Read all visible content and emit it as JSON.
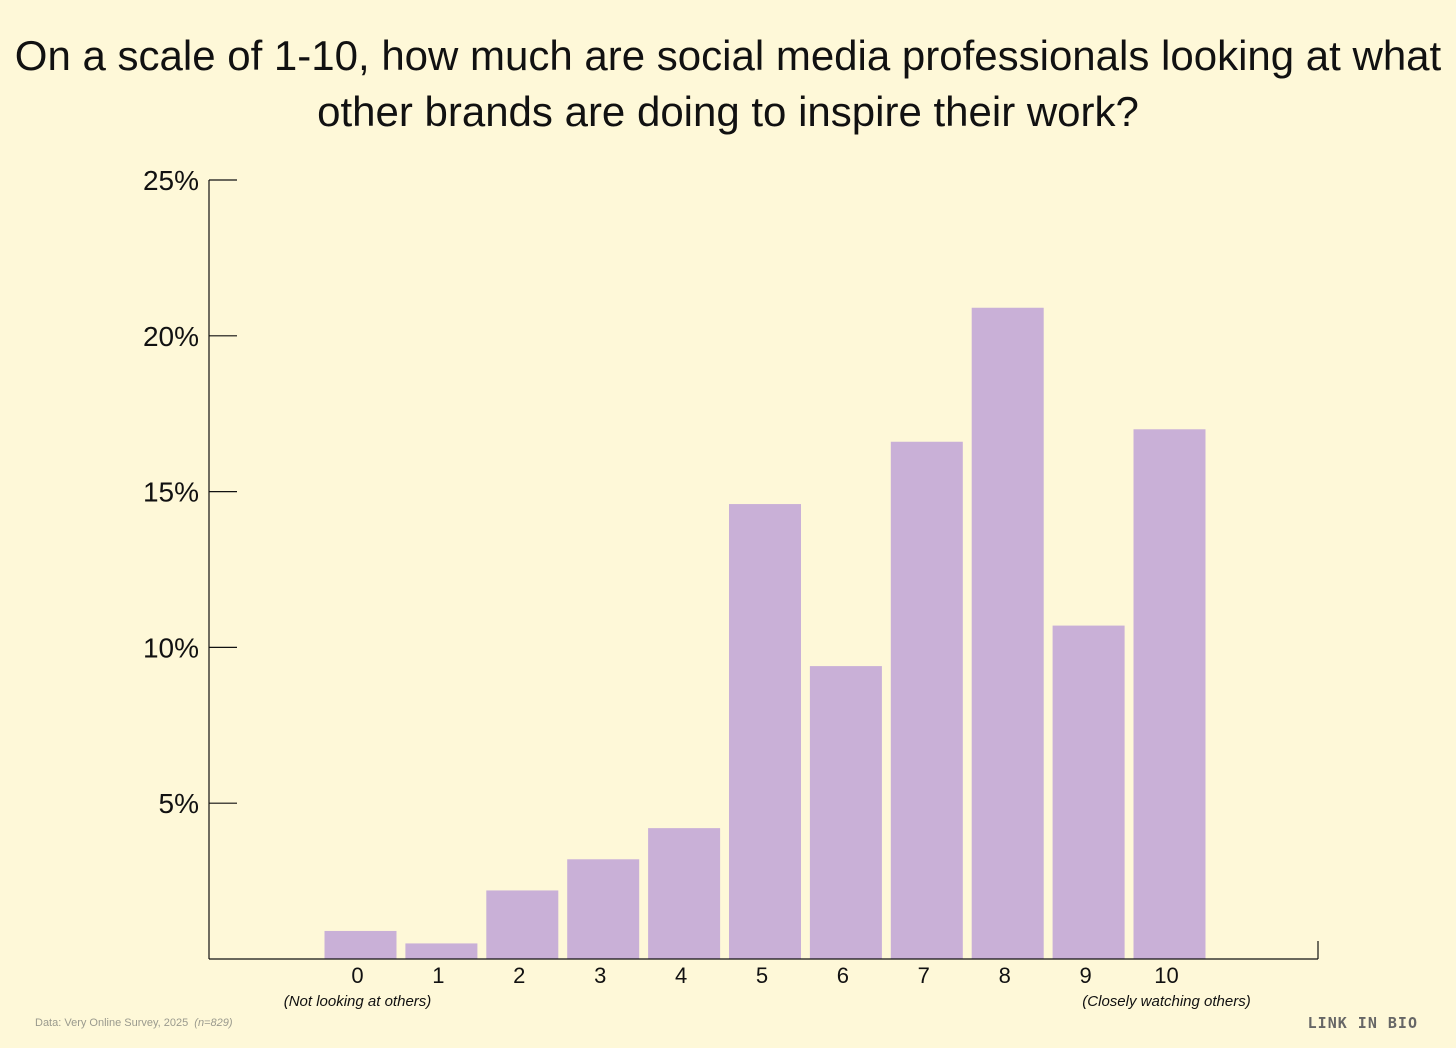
{
  "chart_data": {
    "type": "bar",
    "title": "On a scale of 1-10, how much are social media professionals looking at what other brands are doing to inspire their work?",
    "categories": [
      "0",
      "1",
      "2",
      "3",
      "4",
      "5",
      "6",
      "7",
      "8",
      "9",
      "10"
    ],
    "values": [
      0.9,
      0.5,
      2.2,
      3.2,
      4.2,
      14.6,
      9.4,
      16.6,
      20.9,
      10.7,
      17.0
    ],
    "ylim": [
      0,
      25
    ],
    "yticks": [
      5,
      10,
      15,
      20,
      25
    ],
    "ytick_labels": [
      "5%",
      "10%",
      "15%",
      "20%",
      "25%"
    ],
    "xlabel": "",
    "ylabel": "",
    "low_end_label": "(Not looking at others)",
    "high_end_label": "(Closely watching others)",
    "bar_color": "#c9b0d7",
    "grid": false
  },
  "footer": {
    "source": "Data: Very Online Survey, 2025",
    "sample": "(n=829)",
    "brand": "LINK IN BIO"
  }
}
